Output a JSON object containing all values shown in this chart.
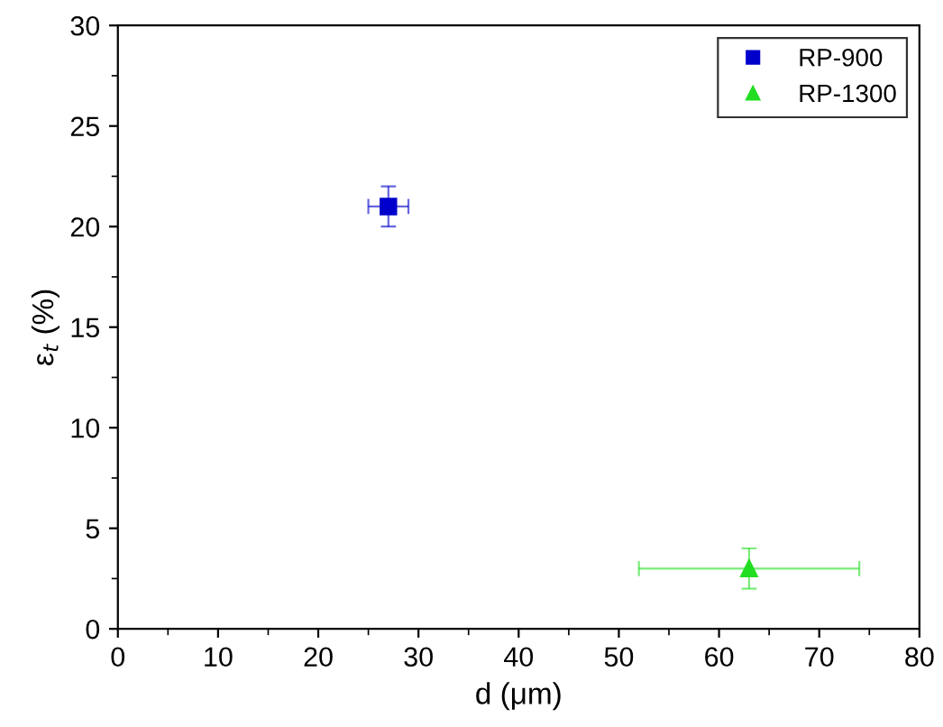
{
  "chart_data": {
    "type": "scatter",
    "xlabel": "d (μm)",
    "ylabel": "ε$_{t}$ (%)",
    "xlim": [
      0,
      80
    ],
    "xticks": [
      0,
      10,
      20,
      30,
      40,
      50,
      60,
      70,
      80
    ],
    "ylim": [
      0,
      30
    ],
    "yticks": [
      0,
      5,
      10,
      15,
      20,
      25,
      30
    ],
    "grid": false,
    "legend": "top right",
    "series": [
      {
        "name": "RP-900",
        "color": "#0000cc",
        "marker": "square",
        "x": [
          27
        ],
        "values": [
          21
        ],
        "errors": [
          [
            20,
            22
          ]
        ],
        "xerrors": [
          [
            25,
            29
          ]
        ]
      },
      {
        "name": "RP-1300",
        "color": "#22dd22",
        "marker": "triangle",
        "x": [
          63
        ],
        "values": [
          3
        ],
        "errors": [
          [
            2,
            4
          ]
        ],
        "xerrors": [
          [
            52,
            74
          ]
        ]
      }
    ]
  }
}
